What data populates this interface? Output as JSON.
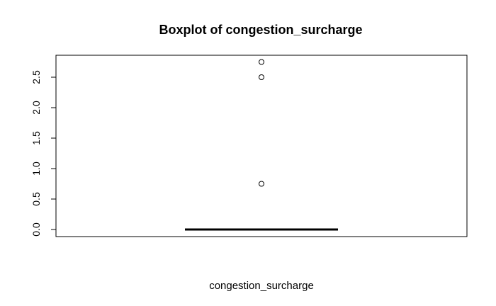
{
  "chart_data": {
    "type": "box",
    "title": "Boxplot of congestion_surcharge",
    "xlabel": "congestion_surcharge",
    "ylabel": "",
    "yticks": [
      "0.0",
      "0.5",
      "1.0",
      "1.5",
      "2.0",
      "2.5"
    ],
    "ylim": [
      0,
      2.75
    ],
    "box": {
      "min": 0,
      "q1": 0,
      "median": 0,
      "q3": 0,
      "max": 0
    },
    "outliers": [
      0.75,
      2.5,
      2.75
    ],
    "grid": false,
    "colors": {
      "line": "#000000",
      "background": "#ffffff"
    }
  }
}
